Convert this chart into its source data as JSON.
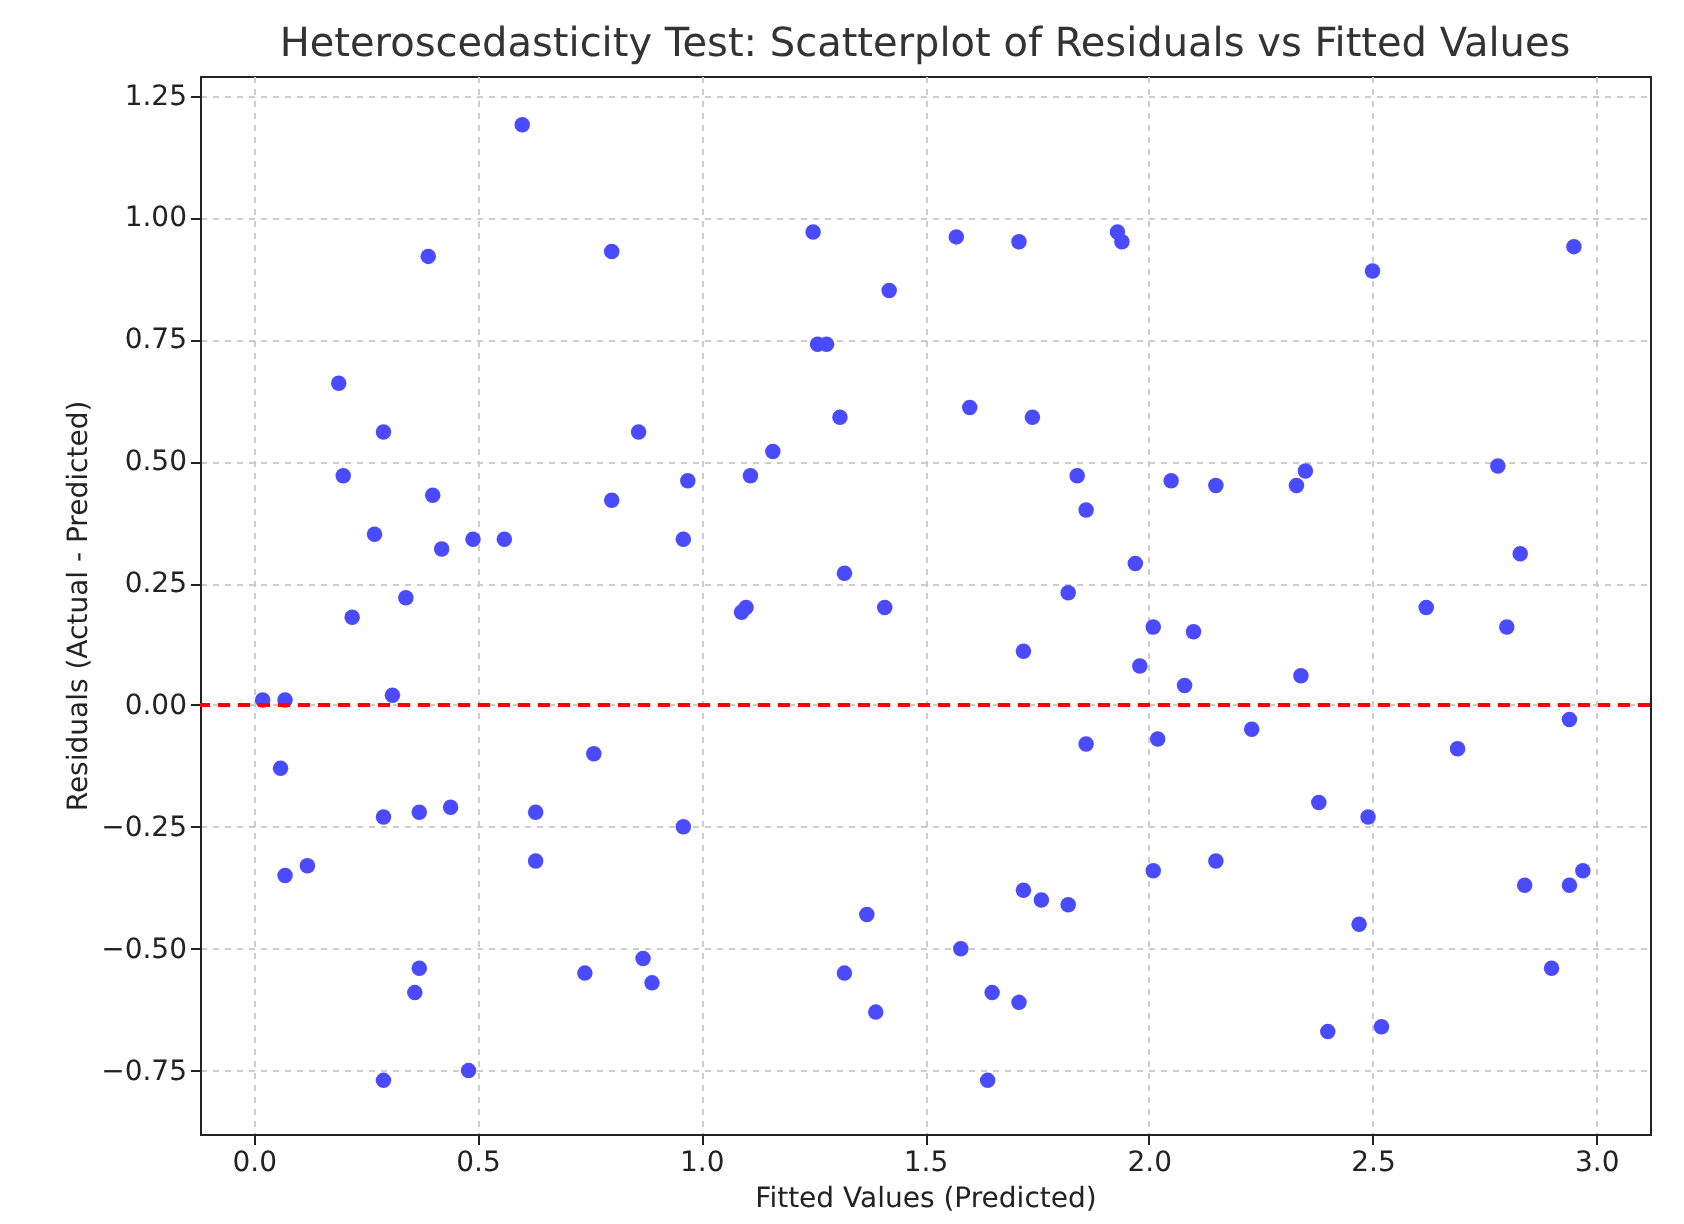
{
  "chart_data": {
    "type": "scatter",
    "title": "Heteroscedasticity Test: Scatterplot of Residuals vs Fitted Values",
    "xlabel": "Fitted Values (Predicted)",
    "ylabel": "Residuals (Actual - Predicted)",
    "series": [
      {
        "color": "#4a4aff",
        "marker": "circle",
        "x": [
          0.02,
          0.07,
          0.06,
          0.07,
          0.12,
          0.19,
          0.2,
          0.22,
          0.27,
          0.29,
          0.29,
          0.31,
          0.34,
          0.37,
          0.37,
          0.36,
          0.29,
          0.39,
          0.4,
          0.42,
          0.44,
          0.49,
          0.48,
          0.56,
          0.6,
          0.63,
          0.63,
          0.74,
          0.76,
          0.8,
          0.8,
          0.86,
          0.87,
          0.89,
          0.96,
          0.97,
          0.96,
          1.09,
          1.1,
          1.11,
          1.16,
          1.25,
          1.26,
          1.28,
          1.31,
          1.32,
          1.32,
          1.37,
          1.39,
          1.41,
          1.42,
          1.57,
          1.58,
          1.6,
          1.64,
          1.65,
          1.71,
          1.72,
          1.72,
          1.71,
          1.74,
          1.76,
          1.82,
          1.82,
          1.84,
          1.86,
          1.86,
          1.93,
          1.94,
          1.97,
          1.98,
          2.01,
          2.01,
          2.02,
          2.05,
          2.08,
          2.1,
          2.15,
          2.15,
          2.23,
          2.33,
          2.34,
          2.35,
          2.38,
          2.4,
          2.47,
          2.49,
          2.5,
          2.52,
          2.62,
          2.69,
          2.78,
          2.8,
          2.83,
          2.84,
          2.9,
          2.95,
          2.94,
          2.94,
          2.97
        ],
        "values": [
          0.01,
          0.01,
          -0.13,
          -0.35,
          -0.33,
          0.66,
          0.47,
          0.18,
          0.35,
          0.56,
          -0.23,
          0.02,
          0.22,
          -0.22,
          -0.54,
          -0.59,
          -0.77,
          0.92,
          0.43,
          0.32,
          -0.21,
          0.34,
          -0.75,
          0.34,
          1.19,
          -0.22,
          -0.32,
          -0.55,
          -0.1,
          0.93,
          0.42,
          0.56,
          -0.52,
          -0.57,
          0.34,
          0.46,
          -0.25,
          0.19,
          0.2,
          0.47,
          0.52,
          0.97,
          0.74,
          0.74,
          0.59,
          0.27,
          -0.55,
          -0.43,
          -0.63,
          0.2,
          0.85,
          0.96,
          -0.5,
          0.61,
          -0.77,
          -0.59,
          0.95,
          0.11,
          -0.38,
          -0.61,
          0.59,
          -0.4,
          0.23,
          -0.41,
          0.47,
          0.4,
          -0.08,
          0.97,
          0.95,
          0.29,
          0.08,
          0.16,
          -0.34,
          -0.07,
          0.46,
          0.04,
          0.15,
          0.45,
          -0.32,
          -0.05,
          0.45,
          0.06,
          0.48,
          -0.2,
          -0.67,
          -0.45,
          -0.23,
          0.89,
          -0.66,
          0.2,
          -0.09,
          0.49,
          0.16,
          0.31,
          -0.37,
          -0.54,
          0.94,
          -0.03,
          -0.37,
          -0.34
        ]
      }
    ],
    "xlim": [
      -0.12,
      3.12
    ],
    "ylim": [
      -0.88,
      1.29
    ],
    "xticks": [
      {
        "value": 0,
        "label": "0.0"
      },
      0.5,
      {
        "value": 1,
        "label": "1.0"
      },
      1.5,
      {
        "value": 2,
        "label": "2.0"
      },
      2.5,
      {
        "value": 3,
        "label": "3.0"
      }
    ],
    "yticks": [
      {
        "value": -0.75,
        "label": "−0.75"
      },
      {
        "value": -0.5,
        "label": "−0.50"
      },
      {
        "value": -0.25,
        "label": "−0.25"
      },
      {
        "value": 0,
        "label": "0.00"
      },
      0.25,
      {
        "value": 0.5,
        "label": "0.50"
      },
      0.75,
      {
        "value": 1,
        "label": "1.00"
      },
      1.25
    ],
    "ref_lines": [
      {
        "axis": "y",
        "value": 0,
        "color": "#ff0000",
        "line_style": "dashed"
      }
    ],
    "grid": true
  }
}
